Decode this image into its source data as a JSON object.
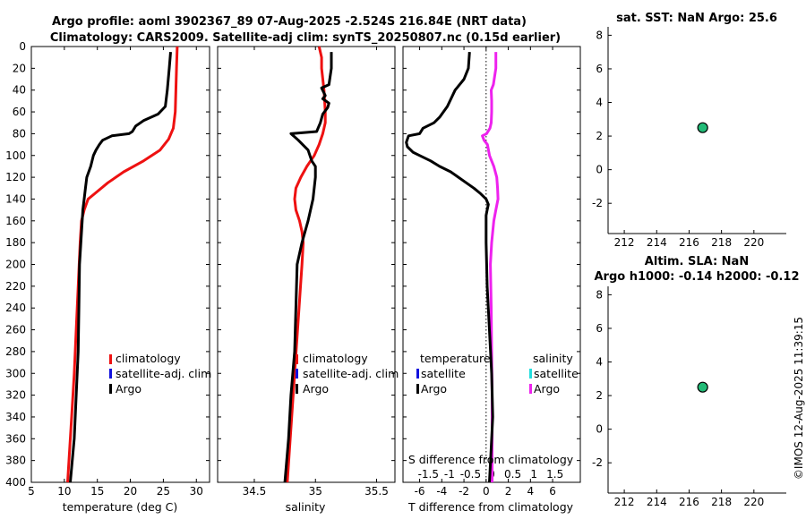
{
  "header": {
    "title_line1": "Argo profile: aoml 3902367_89 07-Aug-2025 -2.524S 216.84E (NRT data)",
    "title_line2": "Climatology: CARS2009. Satellite-adj clim: synTS_20250807.nc (0.15d earlier)"
  },
  "footer": {
    "stamp": "©IMOS 12-Aug-2025 11:39:15"
  },
  "legend_temp": {
    "climatology": "climatology",
    "satellite": "satellite-adj. clim",
    "argo": "Argo"
  },
  "legend_sal": {
    "climatology": "climatology",
    "satellite": "satellite-adj. clim",
    "argo": "Argo"
  },
  "legend_diff": {
    "temperature_head": "temperature",
    "salinity_head": "salinity",
    "t_satellite": "satellite",
    "t_argo": "Argo",
    "s_satellite": "satellite",
    "s_argo": "Argo"
  },
  "colors": {
    "climatology": "#ee1111",
    "satellite": "#1111dd",
    "argo": "#000000",
    "sal_satellite": "#22dddd",
    "sal_argo": "#ee22ee",
    "marker": "#22bb77"
  },
  "chart_data": [
    {
      "name": "temperature-profile",
      "type": "line",
      "xlabel": "temperature (deg C)",
      "ylabel": "",
      "xlim": [
        5,
        32
      ],
      "ylim": [
        400,
        0
      ],
      "xticks": [
        "5",
        "10",
        "15",
        "20",
        "25",
        "30"
      ],
      "yticks": [
        "0",
        "20",
        "40",
        "60",
        "80",
        "100",
        "120",
        "140",
        "160",
        "180",
        "200",
        "220",
        "240",
        "260",
        "280",
        "300",
        "320",
        "340",
        "360",
        "380",
        "400"
      ],
      "series": [
        {
          "name": "climatology",
          "depth": [
            0,
            20,
            40,
            60,
            75,
            85,
            95,
            105,
            115,
            125,
            135,
            140,
            150,
            160,
            180,
            220,
            260,
            300,
            340,
            380,
            400
          ],
          "values": [
            27.1,
            27.0,
            26.9,
            26.8,
            26.5,
            25.8,
            24.5,
            22.0,
            19.0,
            16.6,
            14.6,
            13.6,
            13.0,
            12.6,
            12.4,
            12.1,
            11.8,
            11.5,
            11.1,
            10.7,
            10.5
          ]
        },
        {
          "name": "Argo",
          "depth": [
            5,
            20,
            40,
            55,
            62,
            68,
            73,
            78,
            80,
            82,
            86,
            90,
            95,
            100,
            110,
            120,
            130,
            140,
            150,
            160,
            180,
            200,
            240,
            280,
            320,
            360,
            400
          ],
          "values": [
            26.1,
            25.9,
            25.6,
            25.3,
            24.2,
            22.0,
            20.8,
            20.3,
            19.8,
            17.2,
            15.8,
            15.3,
            14.8,
            14.4,
            14.0,
            13.4,
            13.2,
            13.0,
            12.8,
            12.7,
            12.5,
            12.3,
            12.2,
            12.1,
            11.8,
            11.5,
            10.9
          ]
        }
      ]
    },
    {
      "name": "salinity-profile",
      "type": "line",
      "xlabel": "salinity",
      "ylabel": "",
      "xlim": [
        34.2,
        35.65
      ],
      "ylim": [
        400,
        0
      ],
      "xticks": [
        "34.5",
        "35",
        "35.5"
      ],
      "series": [
        {
          "name": "climatology",
          "depth": [
            0,
            10,
            20,
            40,
            60,
            70,
            80,
            90,
            100,
            110,
            120,
            130,
            140,
            150,
            160,
            170,
            180,
            200,
            250,
            300,
            350,
            400
          ],
          "values": [
            35.03,
            35.05,
            35.05,
            35.07,
            35.08,
            35.08,
            35.06,
            35.03,
            34.99,
            34.93,
            34.88,
            34.84,
            34.83,
            34.84,
            34.87,
            34.89,
            34.9,
            34.89,
            34.86,
            34.83,
            34.8,
            34.77
          ]
        },
        {
          "name": "Argo",
          "depth": [
            5,
            20,
            35,
            38,
            45,
            48,
            52,
            56,
            62,
            70,
            78,
            80,
            82,
            86,
            95,
            105,
            110,
            120,
            140,
            160,
            180,
            200,
            240,
            280,
            320,
            360,
            400
          ],
          "values": [
            35.13,
            35.13,
            35.11,
            35.05,
            35.08,
            35.06,
            35.11,
            35.1,
            35.06,
            35.04,
            35.01,
            34.8,
            34.82,
            34.86,
            34.94,
            34.97,
            35.0,
            35.0,
            34.98,
            34.94,
            34.89,
            34.85,
            34.84,
            34.83,
            34.8,
            34.78,
            34.75
          ]
        }
      ]
    },
    {
      "name": "difference-from-climatology",
      "type": "line",
      "xlabel": "T difference from climatology",
      "xlabel_top": "S difference from climatology",
      "xlim": [
        -7.5,
        8.5
      ],
      "s_xlim": [
        -2.1,
        2.1
      ],
      "ylim": [
        400,
        0
      ],
      "xticks": [
        "-6",
        "-4",
        "-2",
        "0",
        "2",
        "4",
        "6"
      ],
      "s_xticks": [
        "-1.5",
        "-1",
        "-0.5",
        "0",
        "0.5",
        "1",
        "1.5"
      ],
      "series": [
        {
          "name": "temperature-Argo",
          "depth": [
            5,
            20,
            30,
            40,
            55,
            65,
            70,
            75,
            80,
            82,
            88,
            92,
            97,
            100,
            105,
            110,
            115,
            120,
            125,
            130,
            135,
            140,
            145,
            150,
            155,
            160,
            180,
            220,
            260,
            300,
            340,
            380,
            400
          ],
          "values": [
            -1.5,
            -1.6,
            -2.0,
            -2.8,
            -3.5,
            -4.2,
            -4.7,
            -5.7,
            -6.0,
            -7.0,
            -7.2,
            -7.1,
            -6.6,
            -6.0,
            -5.0,
            -4.2,
            -3.2,
            -2.5,
            -1.8,
            -1.1,
            -0.5,
            0.0,
            0.2,
            0.1,
            0.0,
            0.0,
            0.0,
            0.1,
            0.3,
            0.5,
            0.6,
            0.4,
            0.3
          ]
        },
        {
          "name": "salinity-Argo",
          "depth": [
            5,
            20,
            35,
            40,
            50,
            60,
            70,
            75,
            80,
            82,
            86,
            90,
            100,
            110,
            120,
            130,
            140,
            150,
            160,
            180,
            200,
            240,
            280,
            320,
            360,
            400
          ],
          "values": [
            0.1,
            0.1,
            0.04,
            -0.01,
            0.0,
            0.0,
            -0.01,
            -0.04,
            -0.12,
            -0.22,
            -0.18,
            -0.1,
            -0.05,
            0.05,
            0.12,
            0.14,
            0.15,
            0.1,
            0.05,
            0.0,
            -0.03,
            -0.01,
            0.0,
            0.01,
            0.01,
            0.01
          ]
        }
      ]
    },
    {
      "name": "sat-sst-map",
      "type": "scatter",
      "title": "sat. SST: NaN Argo: 25.6",
      "xlim": [
        211,
        222
      ],
      "ylim": [
        -3.8,
        8.5
      ],
      "xticks": [
        "212",
        "214",
        "216",
        "218",
        "220"
      ],
      "yticks": [
        "-2",
        "0",
        "2",
        "4",
        "6",
        "8"
      ],
      "points": [
        {
          "x": 216.84,
          "y": 2.5
        }
      ]
    },
    {
      "name": "altim-sla-map",
      "type": "scatter",
      "title_line1": "Altim. SLA: NaN",
      "title_line2": "Argo h1000: -0.14 h2000: -0.12",
      "xlim": [
        211,
        222
      ],
      "ylim": [
        -3.8,
        8.5
      ],
      "xticks": [
        "212",
        "214",
        "216",
        "218",
        "220"
      ],
      "yticks": [
        "-2",
        "0",
        "2",
        "4",
        "6",
        "8"
      ],
      "points": [
        {
          "x": 216.84,
          "y": 2.5
        }
      ]
    }
  ]
}
